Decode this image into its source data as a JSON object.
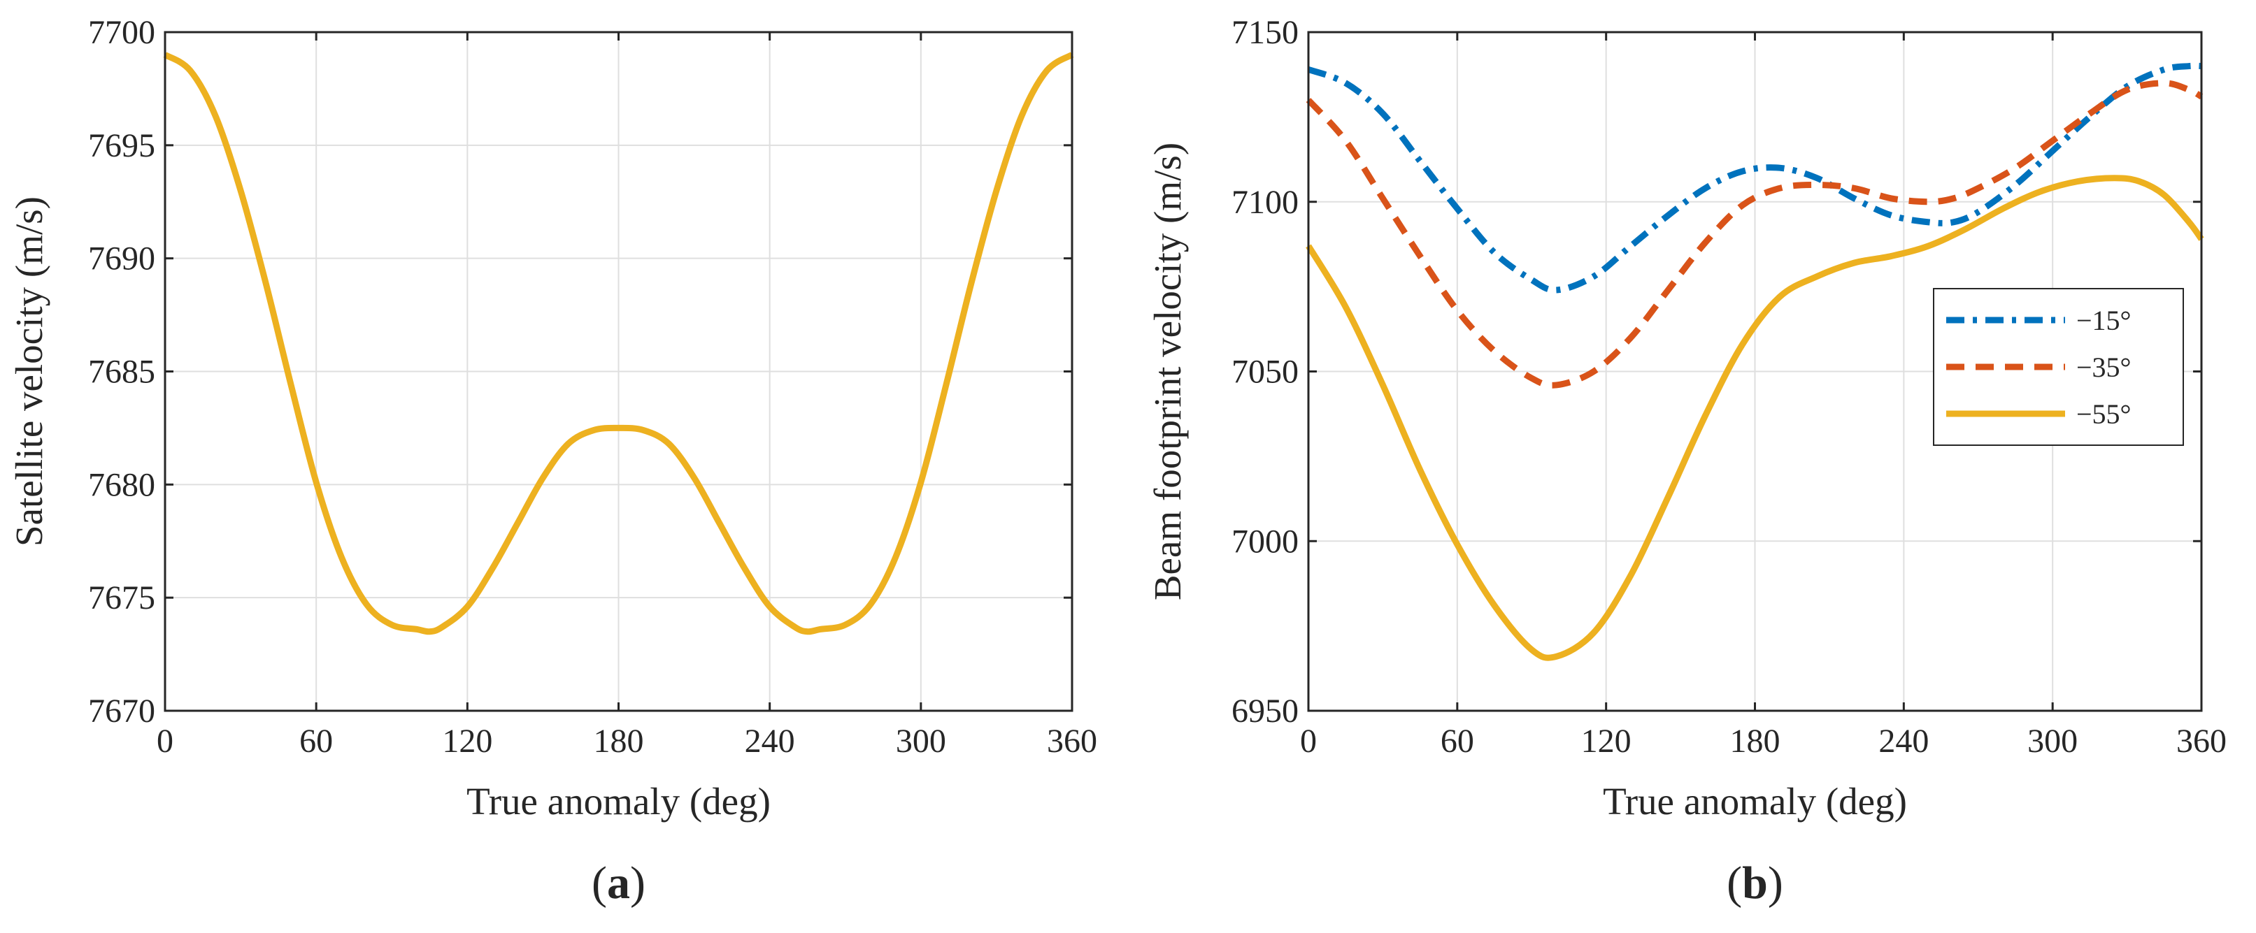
{
  "chart_data": [
    {
      "panel_label_prefix": "(",
      "panel_label_letter": "a",
      "panel_label_suffix": ")",
      "type": "line",
      "title": "",
      "xlabel": "True anomaly (deg)",
      "ylabel": "Satellite velocity (m/s)",
      "xlim": [
        0,
        360
      ],
      "ylim": [
        7670,
        7700
      ],
      "xticks": [
        0,
        60,
        120,
        180,
        240,
        300,
        360
      ],
      "yticks": [
        7670,
        7675,
        7680,
        7685,
        7690,
        7695,
        7700
      ],
      "grid": true,
      "legend": null,
      "series": [
        {
          "name": "Satellite velocity",
          "color": "#EDB120",
          "style": "solid",
          "x": [
            0,
            10,
            20,
            30,
            40,
            50,
            60,
            70,
            80,
            90,
            100,
            105,
            110,
            120,
            130,
            140,
            150,
            160,
            170,
            180,
            190,
            200,
            210,
            220,
            230,
            240,
            250,
            255,
            260,
            270,
            280,
            290,
            300,
            310,
            320,
            330,
            340,
            350,
            360
          ],
          "y": [
            7699.0,
            7698.3,
            7696.3,
            7693.0,
            7688.9,
            7684.4,
            7680.1,
            7676.8,
            7674.7,
            7673.8,
            7673.6,
            7673.5,
            7673.7,
            7674.6,
            7676.3,
            7678.3,
            7680.3,
            7681.8,
            7682.4,
            7682.5,
            7682.4,
            7681.8,
            7680.3,
            7678.3,
            7676.3,
            7674.6,
            7673.7,
            7673.5,
            7673.6,
            7673.8,
            7674.7,
            7676.8,
            7680.1,
            7684.4,
            7688.9,
            7693.0,
            7696.3,
            7698.3,
            7699.0
          ]
        }
      ]
    },
    {
      "panel_label_prefix": "(",
      "panel_label_letter": "b",
      "panel_label_suffix": ")",
      "type": "line",
      "title": "",
      "xlabel": "True anomaly (deg)",
      "ylabel": "Beam footprint velocity (m/s)",
      "xlim": [
        0,
        360
      ],
      "ylim": [
        6950,
        7150
      ],
      "xticks": [
        0,
        60,
        120,
        180,
        240,
        300,
        360
      ],
      "yticks": [
        6950,
        7000,
        7050,
        7100,
        7150
      ],
      "grid": true,
      "legend": "right",
      "series": [
        {
          "name": "−15°",
          "color": "#0072BD",
          "style": "dashdot",
          "x": [
            0,
            15,
            30,
            45,
            60,
            75,
            90,
            100,
            115,
            130,
            145,
            160,
            175,
            190,
            205,
            220,
            235,
            250,
            260,
            270,
            285,
            300,
            315,
            330,
            345,
            355,
            360
          ],
          "y": [
            7139,
            7135,
            7126,
            7112,
            7098,
            7085,
            7077,
            7074,
            7078,
            7087,
            7096,
            7104,
            7109,
            7110,
            7107,
            7101,
            7096,
            7094,
            7094,
            7097,
            7105,
            7115,
            7125,
            7134,
            7139,
            7140,
            7140
          ]
        },
        {
          "name": "−35°",
          "color": "#D95319",
          "style": "dash",
          "x": [
            0,
            15,
            30,
            45,
            60,
            75,
            90,
            100,
            115,
            130,
            145,
            160,
            175,
            190,
            205,
            220,
            235,
            250,
            260,
            270,
            285,
            300,
            315,
            330,
            345,
            355,
            360
          ],
          "y": [
            7130,
            7118,
            7101,
            7084,
            7068,
            7056,
            7048,
            7046,
            7050,
            7060,
            7074,
            7088,
            7099,
            7104,
            7105,
            7104,
            7101,
            7100,
            7101,
            7104,
            7110,
            7118,
            7126,
            7133,
            7135,
            7133,
            7131
          ]
        },
        {
          "name": "−55°",
          "color": "#EDB120",
          "style": "solid",
          "x": [
            0,
            15,
            30,
            45,
            60,
            75,
            90,
            100,
            115,
            130,
            145,
            160,
            175,
            190,
            205,
            220,
            235,
            250,
            265,
            280,
            295,
            310,
            325,
            335,
            345,
            355,
            360
          ],
          "y": [
            7087,
            7069,
            7046,
            7021,
            6999,
            6981,
            6968,
            6966,
            6973,
            6990,
            7013,
            7037,
            7058,
            7072,
            7078,
            7082,
            7084,
            7087,
            7092,
            7098,
            7103,
            7106,
            7107,
            7106,
            7102,
            7094,
            7089
          ]
        }
      ]
    }
  ]
}
